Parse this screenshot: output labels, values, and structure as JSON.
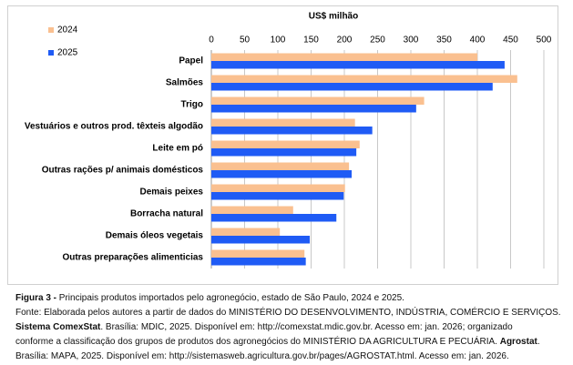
{
  "chart_data": {
    "type": "bar",
    "orientation": "horizontal",
    "x_label": "US$ milhão",
    "categories": [
      "Papel",
      "Salmões",
      "Trigo",
      "Vestuários e outros prod. têxteis algodão",
      "Leite em pó",
      "Outras rações p/ animais domésticos",
      "Demais peixes",
      "Borracha natural",
      "Demais óleos vegetais",
      "Outras preparações alimenticias"
    ],
    "series": [
      {
        "name": "2024",
        "color": "#fac090",
        "values": [
          400,
          460,
          320,
          216,
          223,
          207,
          201,
          123,
          103,
          140
        ]
      },
      {
        "name": "2025",
        "color": "#1f5bf5",
        "values": [
          441,
          423,
          308,
          242,
          218,
          211,
          199,
          188,
          148,
          142
        ]
      }
    ],
    "xlim": [
      0,
      500
    ],
    "xticks": [
      0,
      50,
      100,
      150,
      200,
      250,
      300,
      350,
      400,
      450,
      500
    ],
    "grid": true,
    "legend": "upper left"
  },
  "caption": {
    "lines": [
      [
        {
          "text": "Figura 3 -",
          "bold": true
        },
        {
          "text": " Principais produtos importados pelo agronegócio, estado de São Paulo, 2024 e 2025.",
          "bold": false
        }
      ],
      [
        {
          "text": "Fonte: Elaborada pelos autores a partir de dados do MINISTÉRIO DO DESENVOLVIMENTO, INDÚSTRIA, COMÉRCIO E SERVIÇOS.",
          "bold": false
        }
      ],
      [
        {
          "text": "Sistema ComexStat",
          "bold": true
        },
        {
          "text": ". Brasília: MDIC, 2025. Disponível em: http://comexstat.mdic.gov.br. Acesso em: jan. 2026; organizado",
          "bold": false
        }
      ],
      [
        {
          "text": "conforme a classificação dos grupos de produtos dos agronegócios do MINISTÉRIO DA AGRICULTURA E PECUÁRIA. ",
          "bold": false
        },
        {
          "text": "Agrostat",
          "bold": true
        },
        {
          "text": ".",
          "bold": false
        }
      ],
      [
        {
          "text": "Brasília: MAPA, 2025. Disponível em: http://sistemasweb.agricultura.gov.br/pages/AGROSTAT.html. Acesso em: jan. 2026.",
          "bold": false
        }
      ]
    ]
  }
}
